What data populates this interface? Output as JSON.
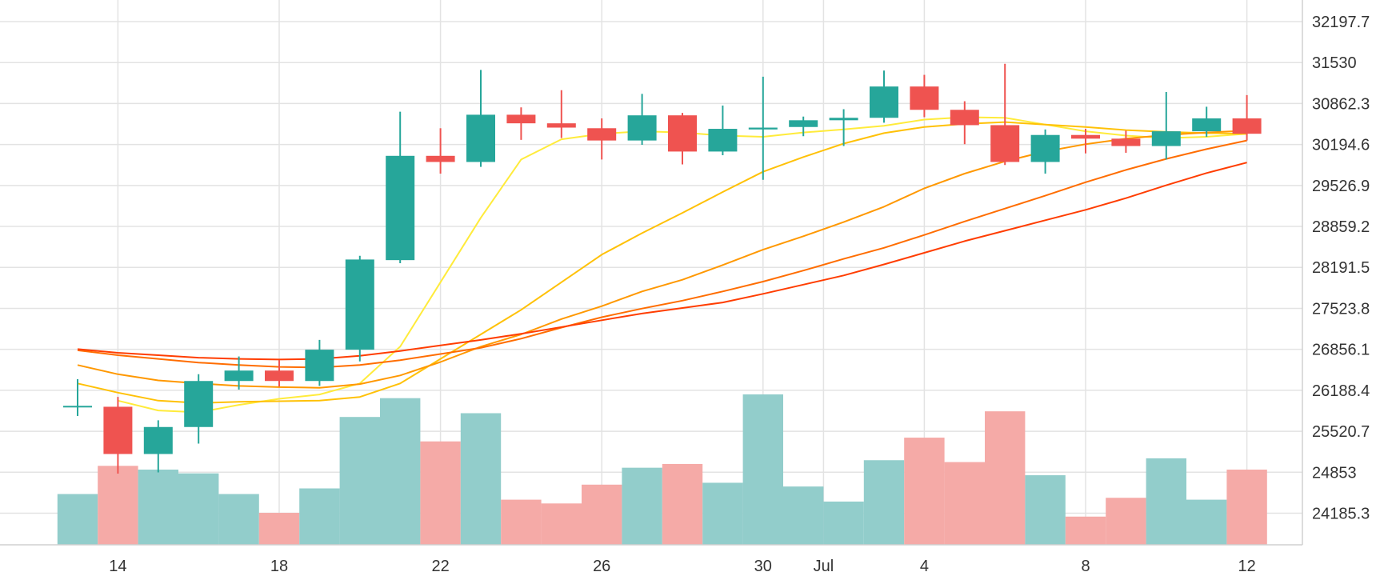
{
  "chart_data": {
    "type": "candlestick",
    "title": "",
    "xlabel": "",
    "ylabel": "",
    "x_ticks": [
      "14",
      "18",
      "22",
      "26",
      "30",
      "Jul",
      "4",
      "8",
      "12"
    ],
    "y_ticks": [
      "32197.7",
      "31530",
      "30862.3",
      "30194.6",
      "29526.9",
      "28859.2",
      "28191.5",
      "27523.8",
      "26856.1",
      "26188.4",
      "25520.7",
      "24853",
      "24185.3"
    ],
    "ylim": [
      23670,
      32550
    ],
    "grid": true,
    "colors": {
      "up": "#26a69a",
      "down": "#ef5350",
      "volume_up": "#92cdcb",
      "volume_down": "#f5aaa7",
      "grid": "#e3e3e3",
      "axis_text": "#333333",
      "ma_colors": [
        "#ffeb3b",
        "#ffc107",
        "#ff9800",
        "#ff6d00",
        "#ff3d00"
      ]
    },
    "candles": [
      {
        "date": "Jun 13",
        "open": 25930,
        "high": 26370,
        "low": 25770,
        "close": 25935
      },
      {
        "date": "Jun 14",
        "open": 25920,
        "high": 26080,
        "low": 24830,
        "close": 25150
      },
      {
        "date": "Jun 15",
        "open": 25150,
        "high": 25700,
        "low": 24850,
        "close": 25590
      },
      {
        "date": "Jun 16",
        "open": 25590,
        "high": 26450,
        "low": 25320,
        "close": 26340
      },
      {
        "date": "Jun 17",
        "open": 26340,
        "high": 26740,
        "low": 26200,
        "close": 26510
      },
      {
        "date": "Jun 18",
        "open": 26510,
        "high": 26680,
        "low": 26250,
        "close": 26340
      },
      {
        "date": "Jun 19",
        "open": 26340,
        "high": 27010,
        "low": 26260,
        "close": 26850
      },
      {
        "date": "Jun 20",
        "open": 26850,
        "high": 28380,
        "low": 26660,
        "close": 28320
      },
      {
        "date": "Jun 21",
        "open": 28310,
        "high": 30730,
        "low": 28260,
        "close": 30010
      },
      {
        "date": "Jun 22",
        "open": 30010,
        "high": 30460,
        "low": 29720,
        "close": 29910
      },
      {
        "date": "Jun 23",
        "open": 29910,
        "high": 31410,
        "low": 29830,
        "close": 30680
      },
      {
        "date": "Jun 24",
        "open": 30680,
        "high": 30800,
        "low": 30270,
        "close": 30540
      },
      {
        "date": "Jun 25",
        "open": 30540,
        "high": 31080,
        "low": 30300,
        "close": 30470
      },
      {
        "date": "Jun 26",
        "open": 30460,
        "high": 30620,
        "low": 29950,
        "close": 30260
      },
      {
        "date": "Jun 27",
        "open": 30260,
        "high": 31020,
        "low": 30190,
        "close": 30670
      },
      {
        "date": "Jun 28",
        "open": 30670,
        "high": 30710,
        "low": 29870,
        "close": 30080
      },
      {
        "date": "Jun 29",
        "open": 30080,
        "high": 30830,
        "low": 30020,
        "close": 30450
      },
      {
        "date": "Jun 30",
        "open": 30440,
        "high": 31300,
        "low": 29620,
        "close": 30470
      },
      {
        "date": "Jul 1",
        "open": 30480,
        "high": 30650,
        "low": 30330,
        "close": 30590
      },
      {
        "date": "Jul 2",
        "open": 30590,
        "high": 30770,
        "low": 30170,
        "close": 30630
      },
      {
        "date": "Jul 3",
        "open": 30630,
        "high": 31400,
        "low": 30550,
        "close": 31140
      },
      {
        "date": "Jul 4",
        "open": 31140,
        "high": 31330,
        "low": 30640,
        "close": 30760
      },
      {
        "date": "Jul 5",
        "open": 30760,
        "high": 30900,
        "low": 30200,
        "close": 30510
      },
      {
        "date": "Jul 6",
        "open": 30510,
        "high": 31510,
        "low": 29860,
        "close": 29910
      },
      {
        "date": "Jul 7",
        "open": 29910,
        "high": 30440,
        "low": 29720,
        "close": 30350
      },
      {
        "date": "Jul 8",
        "open": 30350,
        "high": 30450,
        "low": 30050,
        "close": 30290
      },
      {
        "date": "Jul 9",
        "open": 30290,
        "high": 30420,
        "low": 30060,
        "close": 30170
      },
      {
        "date": "Jul 10",
        "open": 30170,
        "high": 31050,
        "low": 29950,
        "close": 30410
      },
      {
        "date": "Jul 11",
        "open": 30410,
        "high": 30810,
        "low": 30320,
        "close": 30620
      },
      {
        "date": "Jul 12",
        "open": 30620,
        "high": 31000,
        "low": 30260,
        "close": 30370
      }
    ],
    "volume": {
      "max_value": 100,
      "values": [
        27,
        42,
        40,
        38,
        27,
        17,
        30,
        68,
        78,
        55,
        70,
        24,
        22,
        32,
        41,
        43,
        33,
        80,
        31,
        23,
        45,
        57,
        44,
        71,
        37,
        15,
        25,
        46,
        24,
        40
      ],
      "directions": [
        "up",
        "down",
        "up",
        "up",
        "up",
        "down",
        "up",
        "up",
        "up",
        "down",
        "up",
        "down",
        "down",
        "down",
        "up",
        "down",
        "up",
        "up",
        "up",
        "up",
        "up",
        "down",
        "down",
        "down",
        "up",
        "down",
        "down",
        "up",
        "up",
        "down"
      ]
    },
    "moving_averages": [
      {
        "color": "#ffeb3b",
        "start": 1,
        "values": [
          26020,
          25860,
          25830,
          25950,
          26050,
          26120,
          26300,
          26900,
          27950,
          29000,
          29950,
          30280,
          30370,
          30410,
          30390,
          30340,
          30320,
          30390,
          30440,
          30500,
          30600,
          30640,
          30630,
          30520,
          30410,
          30340,
          30300,
          30320,
          30370
        ]
      },
      {
        "color": "#ffc107",
        "start": 0,
        "values": [
          26300,
          26150,
          26020,
          25980,
          26000,
          26010,
          26020,
          26080,
          26300,
          26700,
          27100,
          27500,
          27950,
          28400,
          28750,
          29080,
          29420,
          29750,
          29990,
          30210,
          30380,
          30480,
          30530,
          30560,
          30520,
          30480,
          30430,
          30400,
          30380,
          30370
        ]
      },
      {
        "color": "#ff9800",
        "start": 0,
        "values": [
          26600,
          26450,
          26350,
          26300,
          26260,
          26240,
          26230,
          26290,
          26430,
          26650,
          26900,
          27100,
          27350,
          27560,
          27800,
          27990,
          28230,
          28480,
          28700,
          28930,
          29180,
          29480,
          29720,
          29920,
          30080,
          30200,
          30290,
          30350,
          30390,
          30420
        ]
      },
      {
        "color": "#ff6d00",
        "start": 0,
        "values": [
          26840,
          26760,
          26700,
          26640,
          26600,
          26570,
          26560,
          26600,
          26680,
          26780,
          26880,
          27030,
          27210,
          27380,
          27520,
          27650,
          27800,
          27960,
          28140,
          28330,
          28510,
          28720,
          28940,
          29150,
          29360,
          29580,
          29780,
          29960,
          30120,
          30260
        ]
      },
      {
        "color": "#ff3d00",
        "start": 0,
        "values": [
          26860,
          26800,
          26760,
          26720,
          26700,
          26690,
          26700,
          26750,
          26830,
          26920,
          27010,
          27110,
          27220,
          27330,
          27440,
          27530,
          27620,
          27760,
          27910,
          28060,
          28240,
          28430,
          28620,
          28790,
          28960,
          29130,
          29320,
          29530,
          29730,
          29900
        ]
      }
    ]
  }
}
